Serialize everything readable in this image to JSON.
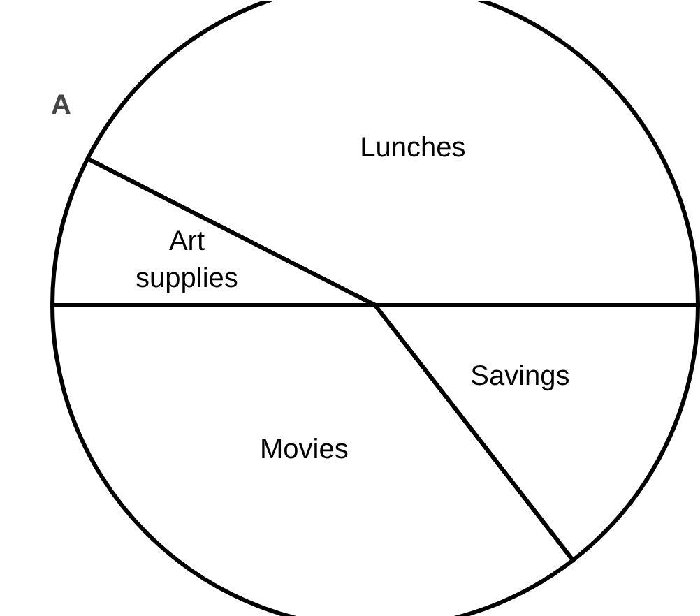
{
  "chart_data": {
    "type": "pie",
    "categories": [
      "Lunches",
      "Art supplies",
      "Movies",
      "Savings"
    ],
    "values": [
      42.5,
      7.5,
      35.5,
      14.5
    ],
    "colors": [
      "#ffffff",
      "#ffffff",
      "#ffffff",
      "#ffffff"
    ],
    "annotations": [
      "A"
    ]
  }
}
